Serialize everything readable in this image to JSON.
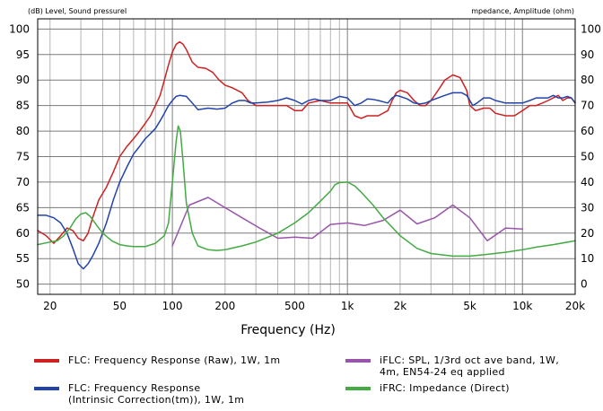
{
  "chart_data": {
    "type": "line",
    "xscale": "log",
    "xlim": [
      17,
      20000
    ],
    "ylim": [
      48,
      102
    ],
    "y2lim": [
      -4,
      104
    ],
    "left_axis_title": "(dB)  Level, Sound pressureI",
    "right_axis_title": "mpedance, Amplitude (ohm)",
    "xlabel": "Frequency  (Hz)",
    "x_ticks": [
      {
        "value": 20,
        "label": "20"
      },
      {
        "value": 50,
        "label": "50"
      },
      {
        "value": 100,
        "label": "100"
      },
      {
        "value": 200,
        "label": "200"
      },
      {
        "value": 500,
        "label": "500"
      },
      {
        "value": 1000,
        "label": "1k"
      },
      {
        "value": 2000,
        "label": "2k"
      },
      {
        "value": 5000,
        "label": "5k"
      },
      {
        "value": 10000,
        "label": "10k"
      },
      {
        "value": 20000,
        "label": "20k"
      }
    ],
    "y_ticks": [
      "50",
      "55",
      "60",
      "65",
      "70",
      "75",
      "80",
      "85",
      "90",
      "95",
      "100"
    ],
    "y2_ticks": [
      "0",
      "10",
      "20",
      "30",
      "40",
      "50",
      "60",
      "70",
      "80",
      "90",
      "100"
    ],
    "grid": true,
    "legend_position": "bottom",
    "series": [
      {
        "name": "FLC: Frequency Response (Raw), 1W, 1m",
        "color": "#cc2222",
        "axis": "left",
        "points": [
          [
            17,
            60.5
          ],
          [
            19,
            59.5
          ],
          [
            21,
            58
          ],
          [
            23,
            59.5
          ],
          [
            25,
            61
          ],
          [
            27,
            60.5
          ],
          [
            29,
            59
          ],
          [
            31,
            58.5
          ],
          [
            33,
            60
          ],
          [
            35,
            63
          ],
          [
            38,
            66.5
          ],
          [
            42,
            69
          ],
          [
            46,
            72
          ],
          [
            50,
            75
          ],
          [
            55,
            77
          ],
          [
            60,
            78.5
          ],
          [
            65,
            80
          ],
          [
            70,
            81.5
          ],
          [
            75,
            83
          ],
          [
            80,
            85
          ],
          [
            85,
            87
          ],
          [
            90,
            90
          ],
          [
            95,
            93
          ],
          [
            100,
            95.5
          ],
          [
            105,
            97
          ],
          [
            110,
            97.5
          ],
          [
            115,
            97
          ],
          [
            120,
            96
          ],
          [
            130,
            93.5
          ],
          [
            140,
            92.5
          ],
          [
            155,
            92.3
          ],
          [
            170,
            91.5
          ],
          [
            185,
            90
          ],
          [
            200,
            89
          ],
          [
            220,
            88.5
          ],
          [
            250,
            87.5
          ],
          [
            270,
            86
          ],
          [
            300,
            85
          ],
          [
            350,
            85
          ],
          [
            400,
            85
          ],
          [
            450,
            85
          ],
          [
            500,
            84
          ],
          [
            550,
            84
          ],
          [
            600,
            85.5
          ],
          [
            700,
            86
          ],
          [
            800,
            85.5
          ],
          [
            900,
            85.5
          ],
          [
            1000,
            85.5
          ],
          [
            1100,
            83
          ],
          [
            1200,
            82.5
          ],
          [
            1300,
            83
          ],
          [
            1500,
            83
          ],
          [
            1700,
            84
          ],
          [
            1800,
            86
          ],
          [
            1900,
            87.5
          ],
          [
            2000,
            88
          ],
          [
            2200,
            87.5
          ],
          [
            2400,
            86
          ],
          [
            2600,
            85
          ],
          [
            2800,
            85
          ],
          [
            3000,
            86
          ],
          [
            3300,
            88
          ],
          [
            3600,
            90
          ],
          [
            4000,
            91
          ],
          [
            4400,
            90.5
          ],
          [
            4800,
            88
          ],
          [
            5000,
            85
          ],
          [
            5400,
            84
          ],
          [
            6000,
            84.5
          ],
          [
            6500,
            84.5
          ],
          [
            7000,
            83.5
          ],
          [
            8000,
            83
          ],
          [
            9000,
            83
          ],
          [
            10000,
            84
          ],
          [
            11000,
            85
          ],
          [
            12000,
            85
          ],
          [
            13000,
            85.5
          ],
          [
            14000,
            86
          ],
          [
            15000,
            86.5
          ],
          [
            16000,
            87
          ],
          [
            17000,
            86
          ],
          [
            18000,
            86.5
          ],
          [
            19000,
            86.5
          ],
          [
            20000,
            85.5
          ]
        ]
      },
      {
        "name": "FLC: Frequency Response\n(Intrinsic Correction(tm)), 1W, 1m",
        "color": "#2244aa",
        "axis": "left",
        "points": [
          [
            17,
            63.5
          ],
          [
            19,
            63.5
          ],
          [
            21,
            63
          ],
          [
            23,
            62
          ],
          [
            25,
            60
          ],
          [
            27,
            57
          ],
          [
            29,
            54
          ],
          [
            31,
            53
          ],
          [
            33,
            54
          ],
          [
            35,
            55.5
          ],
          [
            38,
            58
          ],
          [
            42,
            62
          ],
          [
            46,
            66.5
          ],
          [
            50,
            70
          ],
          [
            55,
            73
          ],
          [
            60,
            75.5
          ],
          [
            65,
            77
          ],
          [
            70,
            78.5
          ],
          [
            75,
            79.5
          ],
          [
            80,
            80.5
          ],
          [
            85,
            82
          ],
          [
            90,
            83.5
          ],
          [
            95,
            85
          ],
          [
            100,
            86
          ],
          [
            105,
            86.8
          ],
          [
            110,
            87
          ],
          [
            120,
            86.8
          ],
          [
            130,
            85.5
          ],
          [
            140,
            84.2
          ],
          [
            160,
            84.5
          ],
          [
            180,
            84.3
          ],
          [
            200,
            84.5
          ],
          [
            220,
            85.5
          ],
          [
            240,
            86
          ],
          [
            260,
            86
          ],
          [
            280,
            85.5
          ],
          [
            300,
            85.5
          ],
          [
            350,
            85.7
          ],
          [
            400,
            86
          ],
          [
            450,
            86.5
          ],
          [
            500,
            86
          ],
          [
            550,
            85.3
          ],
          [
            600,
            86
          ],
          [
            650,
            86.3
          ],
          [
            700,
            86
          ],
          [
            800,
            86
          ],
          [
            900,
            86.8
          ],
          [
            1000,
            86.5
          ],
          [
            1100,
            85
          ],
          [
            1200,
            85.5
          ],
          [
            1300,
            86.3
          ],
          [
            1400,
            86.2
          ],
          [
            1500,
            86
          ],
          [
            1700,
            85.5
          ],
          [
            1800,
            86.5
          ],
          [
            1900,
            87
          ],
          [
            2000,
            86.8
          ],
          [
            2200,
            86.3
          ],
          [
            2400,
            85.5
          ],
          [
            2600,
            85.3
          ],
          [
            2800,
            85.5
          ],
          [
            3000,
            86
          ],
          [
            3300,
            86.5
          ],
          [
            3600,
            87
          ],
          [
            4000,
            87.5
          ],
          [
            4500,
            87.5
          ],
          [
            4800,
            87
          ],
          [
            5000,
            86
          ],
          [
            5200,
            85
          ],
          [
            5500,
            85.5
          ],
          [
            6000,
            86.5
          ],
          [
            6500,
            86.5
          ],
          [
            7000,
            86
          ],
          [
            8000,
            85.5
          ],
          [
            9000,
            85.5
          ],
          [
            10000,
            85.5
          ],
          [
            11000,
            86
          ],
          [
            12000,
            86.5
          ],
          [
            13000,
            86.5
          ],
          [
            14000,
            86.5
          ],
          [
            15000,
            87
          ],
          [
            16000,
            86.5
          ],
          [
            17000,
            86.5
          ],
          [
            18000,
            86.8
          ],
          [
            19000,
            86.5
          ],
          [
            20000,
            85.5
          ]
        ]
      },
      {
        "name": "iFLC: SPL, 1/3rd oct ave band, 1W,\n4m, EN54-24 eq applied",
        "color": "#9955aa",
        "axis": "left",
        "points": [
          [
            100,
            57.5
          ],
          [
            125,
            65.5
          ],
          [
            160,
            67
          ],
          [
            200,
            65
          ],
          [
            250,
            63
          ],
          [
            315,
            61
          ],
          [
            400,
            59
          ],
          [
            500,
            59.2
          ],
          [
            630,
            59
          ],
          [
            800,
            61.7
          ],
          [
            1000,
            62
          ],
          [
            1250,
            61.5
          ],
          [
            1600,
            62.5
          ],
          [
            2000,
            64.5
          ],
          [
            2500,
            61.8
          ],
          [
            3150,
            63
          ],
          [
            4000,
            65.5
          ],
          [
            5000,
            63
          ],
          [
            6300,
            58.5
          ],
          [
            8000,
            61
          ],
          [
            10000,
            60.8
          ]
        ]
      },
      {
        "name": "iFRC: Impedance (Direct)",
        "color": "#44aa44",
        "axis": "right",
        "points": [
          [
            17,
            15.5
          ],
          [
            20,
            16.5
          ],
          [
            22,
            17
          ],
          [
            24,
            19
          ],
          [
            26,
            22
          ],
          [
            28,
            25.5
          ],
          [
            30,
            27.5
          ],
          [
            32,
            28
          ],
          [
            34,
            26.5
          ],
          [
            37,
            23
          ],
          [
            40,
            20
          ],
          [
            45,
            17
          ],
          [
            50,
            15.5
          ],
          [
            55,
            15
          ],
          [
            60,
            14.7
          ],
          [
            70,
            14.7
          ],
          [
            80,
            16
          ],
          [
            90,
            19
          ],
          [
            95,
            24
          ],
          [
            100,
            40
          ],
          [
            105,
            56
          ],
          [
            108,
            62
          ],
          [
            111,
            60
          ],
          [
            115,
            48
          ],
          [
            120,
            32
          ],
          [
            130,
            20
          ],
          [
            140,
            15
          ],
          [
            160,
            13.5
          ],
          [
            180,
            13.2
          ],
          [
            200,
            13.5
          ],
          [
            250,
            15
          ],
          [
            300,
            16.5
          ],
          [
            400,
            20
          ],
          [
            500,
            24
          ],
          [
            600,
            28
          ],
          [
            700,
            32.5
          ],
          [
            800,
            36.5
          ],
          [
            850,
            39
          ],
          [
            900,
            39.8
          ],
          [
            1000,
            40
          ],
          [
            1100,
            38.5
          ],
          [
            1200,
            36
          ],
          [
            1400,
            31
          ],
          [
            1600,
            26
          ],
          [
            2000,
            19
          ],
          [
            2500,
            14
          ],
          [
            3000,
            12
          ],
          [
            4000,
            11
          ],
          [
            5000,
            11
          ],
          [
            6000,
            11.5
          ],
          [
            8000,
            12.5
          ],
          [
            10000,
            13.5
          ],
          [
            12000,
            14.5
          ],
          [
            15000,
            15.5
          ],
          [
            20000,
            17
          ]
        ]
      }
    ]
  }
}
